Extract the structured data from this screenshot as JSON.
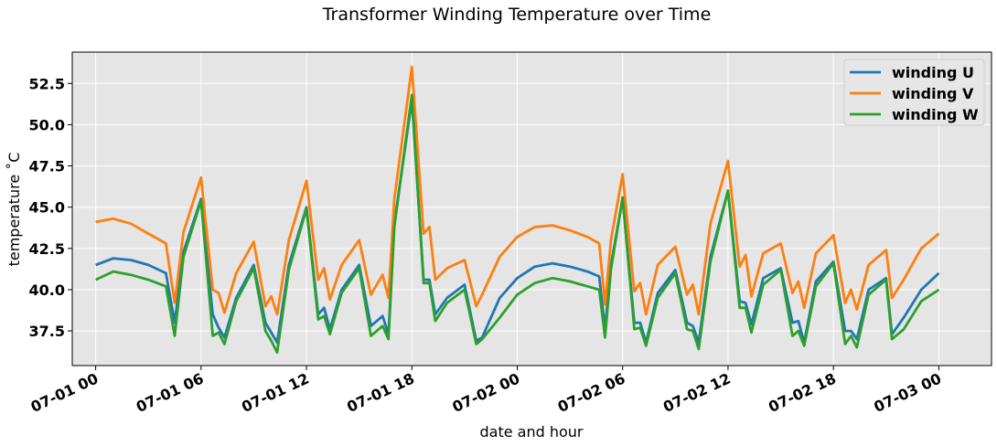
{
  "chart_data": {
    "type": "line",
    "title": "Transformer Winding Temperature over Time",
    "xlabel": "date and hour",
    "ylabel": "temperature ˚C",
    "x_range": [
      "07-01 00",
      "07-03 00"
    ],
    "xlim": [
      "06-30 22:40",
      "07-03 03:00"
    ],
    "ylim": [
      35.4,
      54.4
    ],
    "x_ticks": [
      "07-01 00",
      "07-01 06",
      "07-01 12",
      "07-01 18",
      "07-02 00",
      "07-02 06",
      "07-02 12",
      "07-02 18",
      "07-03 00"
    ],
    "y_ticks": [
      "37.5",
      "40.0",
      "42.5",
      "45.0",
      "47.5",
      "50.0",
      "52.5"
    ],
    "y_tick_values": [
      37.5,
      40.0,
      42.5,
      45.0,
      47.5,
      50.0,
      52.5
    ],
    "grid": true,
    "legend_position": "top-right",
    "series": [
      {
        "name": "winding U",
        "color": "#1f77b4",
        "points": [
          [
            "07-01 00:00",
            41.5
          ],
          [
            "07-01 01:00",
            41.9
          ],
          [
            "07-01 02:00",
            41.8
          ],
          [
            "07-01 03:00",
            41.5
          ],
          [
            "07-01 04:00",
            41.0
          ],
          [
            "07-01 04:30",
            38.0
          ],
          [
            "07-01 05:00",
            42.3
          ],
          [
            "07-01 06:00",
            45.5
          ],
          [
            "07-01 06:40",
            38.5
          ],
          [
            "07-01 07:00",
            37.7
          ],
          [
            "07-01 07:20",
            37.1
          ],
          [
            "07-01 08:00",
            39.5
          ],
          [
            "07-01 09:00",
            41.5
          ],
          [
            "07-01 09:40",
            38.0
          ],
          [
            "07-01 10:00",
            37.4
          ],
          [
            "07-01 10:20",
            36.8
          ],
          [
            "07-01 11:00",
            41.5
          ],
          [
            "07-01 12:00",
            45.0
          ],
          [
            "07-01 12:40",
            38.5
          ],
          [
            "07-01 13:00",
            38.9
          ],
          [
            "07-01 13:20",
            37.6
          ],
          [
            "07-01 14:00",
            40.0
          ],
          [
            "07-01 15:00",
            41.5
          ],
          [
            "07-01 15:40",
            37.8
          ],
          [
            "07-01 16:20",
            38.4
          ],
          [
            "07-01 16:40",
            37.3
          ],
          [
            "07-01 17:00",
            44.0
          ],
          [
            "07-01 18:00",
            51.5
          ],
          [
            "07-01 18:40",
            40.6
          ],
          [
            "07-01 19:00",
            40.6
          ],
          [
            "07-01 19:20",
            38.5
          ],
          [
            "07-01 20:00",
            39.5
          ],
          [
            "07-01 21:00",
            40.3
          ],
          [
            "07-01 21:40",
            36.9
          ],
          [
            "07-01 22:00",
            37.1
          ],
          [
            "07-01 23:00",
            39.5
          ],
          [
            "07-02 00:00",
            40.7
          ],
          [
            "07-02 01:00",
            41.4
          ],
          [
            "07-02 02:00",
            41.6
          ],
          [
            "07-02 03:00",
            41.4
          ],
          [
            "07-02 04:00",
            41.1
          ],
          [
            "07-02 04:40",
            40.8
          ],
          [
            "07-02 05:00",
            37.6
          ],
          [
            "07-02 05:20",
            41.5
          ],
          [
            "07-02 06:00",
            45.5
          ],
          [
            "07-02 06:40",
            38.0
          ],
          [
            "07-02 07:00",
            38.0
          ],
          [
            "07-02 07:20",
            36.8
          ],
          [
            "07-02 08:00",
            39.8
          ],
          [
            "07-02 09:00",
            41.2
          ],
          [
            "07-02 09:40",
            38.0
          ],
          [
            "07-02 10:00",
            37.8
          ],
          [
            "07-02 10:20",
            36.8
          ],
          [
            "07-02 11:00",
            42.0
          ],
          [
            "07-02 12:00",
            46.0
          ],
          [
            "07-02 12:40",
            39.3
          ],
          [
            "07-02 13:00",
            39.2
          ],
          [
            "07-02 13:20",
            37.9
          ],
          [
            "07-02 14:00",
            40.7
          ],
          [
            "07-02 15:00",
            41.3
          ],
          [
            "07-02 15:40",
            38.0
          ],
          [
            "07-02 16:00",
            38.1
          ],
          [
            "07-02 16:20",
            36.8
          ],
          [
            "07-02 17:00",
            40.5
          ],
          [
            "07-02 18:00",
            41.7
          ],
          [
            "07-02 18:40",
            37.5
          ],
          [
            "07-02 19:00",
            37.5
          ],
          [
            "07-02 19:20",
            37.0
          ],
          [
            "07-02 20:00",
            40.0
          ],
          [
            "07-02 21:00",
            40.7
          ],
          [
            "07-02 21:20",
            37.3
          ],
          [
            "07-02 22:00",
            38.3
          ],
          [
            "07-02 23:00",
            40.0
          ],
          [
            "07-03 00:00",
            41.0
          ]
        ]
      },
      {
        "name": "winding V",
        "color": "#ff7f0e",
        "points": [
          [
            "07-01 00:00",
            44.1
          ],
          [
            "07-01 01:00",
            44.3
          ],
          [
            "07-01 02:00",
            44.0
          ],
          [
            "07-01 03:00",
            43.4
          ],
          [
            "07-01 04:00",
            42.8
          ],
          [
            "07-01 04:30",
            39.2
          ],
          [
            "07-01 05:00",
            43.5
          ],
          [
            "07-01 06:00",
            46.8
          ],
          [
            "07-01 06:40",
            40.0
          ],
          [
            "07-01 07:00",
            39.8
          ],
          [
            "07-01 07:20",
            38.6
          ],
          [
            "07-01 08:00",
            41.0
          ],
          [
            "07-01 09:00",
            42.9
          ],
          [
            "07-01 09:40",
            39.0
          ],
          [
            "07-01 10:00",
            39.6
          ],
          [
            "07-01 10:20",
            38.5
          ],
          [
            "07-01 11:00",
            43.0
          ],
          [
            "07-01 12:00",
            46.6
          ],
          [
            "07-01 12:40",
            40.6
          ],
          [
            "07-01 13:00",
            41.3
          ],
          [
            "07-01 13:20",
            39.4
          ],
          [
            "07-01 14:00",
            41.5
          ],
          [
            "07-01 15:00",
            43.0
          ],
          [
            "07-01 15:40",
            39.7
          ],
          [
            "07-01 16:20",
            40.9
          ],
          [
            "07-01 16:40",
            39.5
          ],
          [
            "07-01 17:00",
            45.5
          ],
          [
            "07-01 18:00",
            53.5
          ],
          [
            "07-01 18:40",
            43.4
          ],
          [
            "07-01 19:00",
            43.8
          ],
          [
            "07-01 19:20",
            40.6
          ],
          [
            "07-01 20:00",
            41.3
          ],
          [
            "07-01 21:00",
            41.8
          ],
          [
            "07-01 21:40",
            39.0
          ],
          [
            "07-01 22:00",
            39.7
          ],
          [
            "07-01 23:00",
            42.0
          ],
          [
            "07-02 00:00",
            43.2
          ],
          [
            "07-02 01:00",
            43.8
          ],
          [
            "07-02 02:00",
            43.9
          ],
          [
            "07-02 03:00",
            43.6
          ],
          [
            "07-02 04:00",
            43.2
          ],
          [
            "07-02 04:40",
            42.8
          ],
          [
            "07-02 05:00",
            39.1
          ],
          [
            "07-02 05:20",
            43.0
          ],
          [
            "07-02 06:00",
            47.0
          ],
          [
            "07-02 06:40",
            39.9
          ],
          [
            "07-02 07:00",
            40.4
          ],
          [
            "07-02 07:20",
            38.5
          ],
          [
            "07-02 08:00",
            41.5
          ],
          [
            "07-02 09:00",
            42.6
          ],
          [
            "07-02 09:40",
            39.7
          ],
          [
            "07-02 10:00",
            40.3
          ],
          [
            "07-02 10:20",
            38.5
          ],
          [
            "07-02 11:00",
            44.0
          ],
          [
            "07-02 12:00",
            47.8
          ],
          [
            "07-02 12:40",
            41.4
          ],
          [
            "07-02 13:00",
            42.1
          ],
          [
            "07-02 13:20",
            39.6
          ],
          [
            "07-02 14:00",
            42.2
          ],
          [
            "07-02 15:00",
            42.8
          ],
          [
            "07-02 15:40",
            39.8
          ],
          [
            "07-02 16:00",
            40.5
          ],
          [
            "07-02 16:20",
            38.9
          ],
          [
            "07-02 17:00",
            42.2
          ],
          [
            "07-02 18:00",
            43.3
          ],
          [
            "07-02 18:40",
            39.2
          ],
          [
            "07-02 19:00",
            40.0
          ],
          [
            "07-02 19:20",
            38.8
          ],
          [
            "07-02 20:00",
            41.5
          ],
          [
            "07-02 21:00",
            42.4
          ],
          [
            "07-02 21:20",
            39.5
          ],
          [
            "07-02 22:00",
            40.6
          ],
          [
            "07-02 23:00",
            42.5
          ],
          [
            "07-03 00:00",
            43.4
          ]
        ]
      },
      {
        "name": "winding W",
        "color": "#2ca02c",
        "points": [
          [
            "07-01 00:00",
            40.6
          ],
          [
            "07-01 01:00",
            41.1
          ],
          [
            "07-01 02:00",
            40.9
          ],
          [
            "07-01 03:00",
            40.6
          ],
          [
            "07-01 04:00",
            40.2
          ],
          [
            "07-01 04:30",
            37.2
          ],
          [
            "07-01 05:00",
            42.0
          ],
          [
            "07-01 06:00",
            45.4
          ],
          [
            "07-01 06:40",
            37.2
          ],
          [
            "07-01 07:00",
            37.4
          ],
          [
            "07-01 07:20",
            36.7
          ],
          [
            "07-01 08:00",
            39.3
          ],
          [
            "07-01 09:00",
            41.3
          ],
          [
            "07-01 09:40",
            37.5
          ],
          [
            "07-01 10:00",
            36.9
          ],
          [
            "07-01 10:20",
            36.2
          ],
          [
            "07-01 11:00",
            41.2
          ],
          [
            "07-01 12:00",
            44.9
          ],
          [
            "07-01 12:40",
            38.2
          ],
          [
            "07-01 13:00",
            38.4
          ],
          [
            "07-01 13:20",
            37.3
          ],
          [
            "07-01 14:00",
            39.8
          ],
          [
            "07-01 15:00",
            41.3
          ],
          [
            "07-01 15:40",
            37.2
          ],
          [
            "07-01 16:20",
            37.8
          ],
          [
            "07-01 16:40",
            37.0
          ],
          [
            "07-01 17:00",
            43.8
          ],
          [
            "07-01 18:00",
            51.8
          ],
          [
            "07-01 18:40",
            40.4
          ],
          [
            "07-01 19:00",
            40.4
          ],
          [
            "07-01 19:20",
            38.1
          ],
          [
            "07-01 20:00",
            39.2
          ],
          [
            "07-01 21:00",
            40.0
          ],
          [
            "07-01 21:40",
            36.7
          ],
          [
            "07-01 22:00",
            37.0
          ],
          [
            "07-01 23:00",
            38.3
          ],
          [
            "07-02 00:00",
            39.7
          ],
          [
            "07-02 01:00",
            40.4
          ],
          [
            "07-02 02:00",
            40.7
          ],
          [
            "07-02 03:00",
            40.5
          ],
          [
            "07-02 04:00",
            40.2
          ],
          [
            "07-02 04:40",
            40.0
          ],
          [
            "07-02 05:00",
            37.1
          ],
          [
            "07-02 05:20",
            41.2
          ],
          [
            "07-02 06:00",
            45.6
          ],
          [
            "07-02 06:40",
            37.6
          ],
          [
            "07-02 07:00",
            37.7
          ],
          [
            "07-02 07:20",
            36.6
          ],
          [
            "07-02 08:00",
            39.5
          ],
          [
            "07-02 09:00",
            41.0
          ],
          [
            "07-02 09:40",
            37.6
          ],
          [
            "07-02 10:00",
            37.5
          ],
          [
            "07-02 10:20",
            36.4
          ],
          [
            "07-02 11:00",
            41.7
          ],
          [
            "07-02 12:00",
            46.0
          ],
          [
            "07-02 12:40",
            38.9
          ],
          [
            "07-02 13:00",
            38.9
          ],
          [
            "07-02 13:20",
            37.4
          ],
          [
            "07-02 14:00",
            40.3
          ],
          [
            "07-02 15:00",
            41.2
          ],
          [
            "07-02 15:40",
            37.2
          ],
          [
            "07-02 16:00",
            37.5
          ],
          [
            "07-02 16:20",
            36.6
          ],
          [
            "07-02 17:00",
            40.2
          ],
          [
            "07-02 18:00",
            41.6
          ],
          [
            "07-02 18:40",
            36.7
          ],
          [
            "07-02 19:00",
            37.2
          ],
          [
            "07-02 19:20",
            36.5
          ],
          [
            "07-02 20:00",
            39.7
          ],
          [
            "07-02 21:00",
            40.6
          ],
          [
            "07-02 21:20",
            37.0
          ],
          [
            "07-02 22:00",
            37.6
          ],
          [
            "07-02 23:00",
            39.3
          ],
          [
            "07-03 00:00",
            40.0
          ]
        ]
      }
    ]
  }
}
